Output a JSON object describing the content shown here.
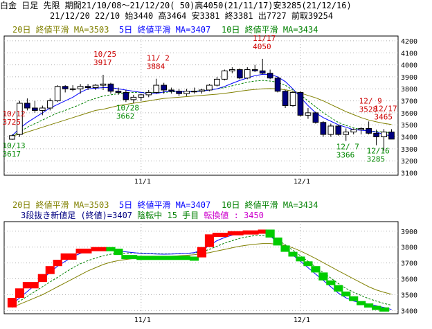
{
  "header": {
    "line1": "白金 日足 先限 期間21/10/08～21/12/20( 50)高4050(21/11/17)安3285(21/12/16)",
    "line2": "21/12/20 22/10 始3440 高3464 安3381 終3381 出7727 前取39254"
  },
  "colors": {
    "ma20": "#808000",
    "ma5": "#0000ff",
    "ma10": "#008000",
    "up": "#ffffff",
    "down": "#000080",
    "rise_brick": "#ff0000",
    "fall_brick": "#00cc00",
    "high_label": "#cc0000",
    "low_label": "#008800",
    "grid": "#b0b0b0",
    "reversal": "#cc00cc"
  },
  "legend_top": {
    "ma20": "20日 終値平滑 MA=3503",
    "ma5": "5日 終値平滑 MA=3407",
    "ma10": "10日 終値平滑 MA=3434"
  },
  "legend_bottom": {
    "ma20": "20日 終値平滑 MA=3503",
    "ma5": "5日 終値平滑 MA=3407",
    "ma10": "10日 終値平滑 MA=3434",
    "info_prefix": "3段抜き新値足 (終値)=3407 ",
    "info_trend": "陰転中 15 手目",
    "info_reversal": " 転換値 : 3450"
  },
  "x_ticks": [
    {
      "label": "11/1",
      "index": 17
    },
    {
      "label": "12/1",
      "index": 38
    }
  ],
  "chart_data": [
    {
      "type": "candlestick",
      "y_ticks": [
        3100,
        3200,
        3300,
        3400,
        3500,
        3600,
        3700,
        3800,
        3900,
        4000,
        4100,
        4200
      ],
      "ylim": [
        3080,
        4240
      ],
      "ohlc": [
        [
          3380,
          3420,
          3375,
          3410
        ],
        [
          3420,
          3700,
          3400,
          3680
        ],
        [
          3680,
          3720,
          3620,
          3640
        ],
        [
          3640,
          3700,
          3600,
          3620
        ],
        [
          3620,
          3660,
          3580,
          3640
        ],
        [
          3640,
          3720,
          3620,
          3700
        ],
        [
          3700,
          3830,
          3690,
          3820
        ],
        [
          3820,
          3830,
          3770,
          3800
        ],
        [
          3800,
          3830,
          3780,
          3800
        ],
        [
          3800,
          3840,
          3760,
          3820
        ],
        [
          3820,
          3840,
          3790,
          3810
        ],
        [
          3810,
          3840,
          3790,
          3830
        ],
        [
          3830,
          3917,
          3790,
          3840
        ],
        [
          3840,
          3850,
          3760,
          3780
        ],
        [
          3780,
          3810,
          3750,
          3770
        ],
        [
          3770,
          3790,
          3690,
          3710
        ],
        [
          3710,
          3750,
          3680,
          3730
        ],
        [
          3730,
          3760,
          3700,
          3750
        ],
        [
          3750,
          3790,
          3730,
          3770
        ],
        [
          3770,
          3884,
          3760,
          3830
        ],
        [
          3830,
          3850,
          3760,
          3790
        ],
        [
          3790,
          3810,
          3760,
          3780
        ],
        [
          3780,
          3800,
          3740,
          3760
        ],
        [
          3760,
          3800,
          3740,
          3780
        ],
        [
          3780,
          3810,
          3760,
          3780
        ],
        [
          3780,
          3800,
          3760,
          3790
        ],
        [
          3790,
          3840,
          3780,
          3830
        ],
        [
          3830,
          3900,
          3820,
          3880
        ],
        [
          3880,
          3960,
          3870,
          3950
        ],
        [
          3950,
          3980,
          3930,
          3960
        ],
        [
          3960,
          3970,
          3880,
          3890
        ],
        [
          3890,
          3980,
          3880,
          3960
        ],
        [
          3960,
          4000,
          3940,
          3950
        ],
        [
          3950,
          4050,
          3920,
          3930
        ],
        [
          3930,
          3960,
          3880,
          3890
        ],
        [
          3890,
          3900,
          3770,
          3780
        ],
        [
          3780,
          3790,
          3640,
          3660
        ],
        [
          3660,
          3780,
          3650,
          3770
        ],
        [
          3770,
          3780,
          3570,
          3580
        ],
        [
          3580,
          3640,
          3550,
          3600
        ],
        [
          3600,
          3610,
          3510,
          3520
        ],
        [
          3520,
          3530,
          3400,
          3420
        ],
        [
          3420,
          3510,
          3400,
          3490
        ],
        [
          3490,
          3500,
          3410,
          3420
        ],
        [
          3420,
          3470,
          3366,
          3440
        ],
        [
          3440,
          3470,
          3420,
          3460
        ],
        [
          3460,
          3480,
          3420,
          3470
        ],
        [
          3470,
          3528,
          3420,
          3430
        ],
        [
          3430,
          3460,
          3330,
          3400
        ],
        [
          3400,
          3465,
          3285,
          3440
        ],
        [
          3440,
          3464,
          3381,
          3381
        ]
      ],
      "ma5": [
        3410,
        3470,
        3520,
        3560,
        3600,
        3640,
        3670,
        3700,
        3730,
        3770,
        3800,
        3805,
        3810,
        3810,
        3800,
        3790,
        3780,
        3770,
        3760,
        3760,
        3775,
        3780,
        3780,
        3775,
        3778,
        3780,
        3790,
        3800,
        3820,
        3845,
        3870,
        3890,
        3910,
        3920,
        3920,
        3900,
        3860,
        3800,
        3730,
        3660,
        3600,
        3560,
        3530,
        3500,
        3480,
        3460,
        3455,
        3450,
        3440,
        3420,
        3407
      ],
      "ma10": [
        3410,
        3440,
        3480,
        3510,
        3540,
        3570,
        3600,
        3620,
        3645,
        3670,
        3700,
        3720,
        3740,
        3750,
        3760,
        3765,
        3770,
        3770,
        3770,
        3770,
        3770,
        3775,
        3777,
        3778,
        3780,
        3784,
        3790,
        3800,
        3810,
        3825,
        3840,
        3855,
        3865,
        3870,
        3865,
        3855,
        3830,
        3790,
        3750,
        3700,
        3650,
        3600,
        3560,
        3520,
        3495,
        3475,
        3460,
        3450,
        3445,
        3440,
        3434
      ],
      "ma20": [
        3410,
        3420,
        3440,
        3460,
        3480,
        3500,
        3520,
        3540,
        3560,
        3580,
        3600,
        3620,
        3630,
        3645,
        3660,
        3670,
        3680,
        3690,
        3700,
        3710,
        3720,
        3725,
        3730,
        3735,
        3740,
        3745,
        3750,
        3755,
        3762,
        3770,
        3780,
        3788,
        3795,
        3800,
        3802,
        3800,
        3792,
        3780,
        3765,
        3745,
        3725,
        3700,
        3670,
        3640,
        3610,
        3585,
        3560,
        3540,
        3525,
        3512,
        3503
      ],
      "high_labels": [
        {
          "index": 0,
          "date": "10/12",
          "value": "3725"
        },
        {
          "index": 12,
          "date": "10/25",
          "value": "3917"
        },
        {
          "index": 19,
          "date": "11/ 2",
          "value": "3884"
        },
        {
          "index": 33,
          "date": "11/17",
          "value": "4050"
        },
        {
          "index": 47,
          "date": "12/ 9",
          "value": "3528"
        },
        {
          "index": 49,
          "date": "12/17",
          "value": "3465"
        }
      ],
      "low_labels": [
        {
          "index": 0,
          "date": "10/13",
          "value": "3617"
        },
        {
          "index": 15,
          "date": "10/28",
          "value": "3662"
        },
        {
          "index": 44,
          "date": "12/ 7",
          "value": "3366"
        },
        {
          "index": 48,
          "date": "12/16",
          "value": "3285"
        }
      ]
    },
    {
      "type": "three_line_break",
      "y_ticks": [
        3400,
        3500,
        3600,
        3700,
        3800,
        3900
      ],
      "ylim": [
        3380,
        3960
      ],
      "bricks": [
        {
          "index": 0,
          "open": 3420,
          "close": 3480,
          "dir": "up"
        },
        {
          "index": 1,
          "open": 3480,
          "close": 3540,
          "dir": "up"
        },
        {
          "index": 2,
          "open": 3540,
          "close": 3580,
          "dir": "up"
        },
        {
          "index": 4,
          "open": 3580,
          "close": 3630,
          "dir": "up"
        },
        {
          "index": 5,
          "open": 3630,
          "close": 3680,
          "dir": "up"
        },
        {
          "index": 6,
          "open": 3680,
          "close": 3720,
          "dir": "up"
        },
        {
          "index": 7,
          "open": 3720,
          "close": 3760,
          "dir": "up"
        },
        {
          "index": 9,
          "open": 3760,
          "close": 3790,
          "dir": "up"
        },
        {
          "index": 11,
          "open": 3790,
          "close": 3800,
          "dir": "up"
        },
        {
          "index": 13,
          "open": 3800,
          "close": 3790,
          "dir": "down"
        },
        {
          "index": 14,
          "open": 3790,
          "close": 3750,
          "dir": "down"
        },
        {
          "index": 15,
          "open": 3750,
          "close": 3745,
          "dir": "down"
        },
        {
          "index": 17,
          "open": 3745,
          "close": 3740,
          "dir": "down"
        },
        {
          "index": 24,
          "open": 3740,
          "close": 3735,
          "dir": "down"
        },
        {
          "index": 25,
          "open": 3735,
          "close": 3800,
          "dir": "up"
        },
        {
          "index": 26,
          "open": 3800,
          "close": 3880,
          "dir": "up"
        },
        {
          "index": 27,
          "open": 3880,
          "close": 3890,
          "dir": "up"
        },
        {
          "index": 29,
          "open": 3890,
          "close": 3900,
          "dir": "up"
        },
        {
          "index": 31,
          "open": 3900,
          "close": 3905,
          "dir": "up"
        },
        {
          "index": 33,
          "open": 3905,
          "close": 3910,
          "dir": "up"
        },
        {
          "index": 34,
          "open": 3910,
          "close": 3860,
          "dir": "down"
        },
        {
          "index": 35,
          "open": 3860,
          "close": 3810,
          "dir": "down"
        },
        {
          "index": 36,
          "open": 3810,
          "close": 3770,
          "dir": "down"
        },
        {
          "index": 37,
          "open": 3770,
          "close": 3740,
          "dir": "down"
        },
        {
          "index": 38,
          "open": 3740,
          "close": 3710,
          "dir": "down"
        },
        {
          "index": 39,
          "open": 3710,
          "close": 3680,
          "dir": "down"
        },
        {
          "index": 40,
          "open": 3680,
          "close": 3640,
          "dir": "down"
        },
        {
          "index": 41,
          "open": 3640,
          "close": 3590,
          "dir": "down"
        },
        {
          "index": 42,
          "open": 3590,
          "close": 3560,
          "dir": "down"
        },
        {
          "index": 43,
          "open": 3560,
          "close": 3520,
          "dir": "down"
        },
        {
          "index": 44,
          "open": 3520,
          "close": 3490,
          "dir": "down"
        },
        {
          "index": 45,
          "open": 3490,
          "close": 3460,
          "dir": "down"
        },
        {
          "index": 46,
          "open": 3460,
          "close": 3445,
          "dir": "down"
        },
        {
          "index": 47,
          "open": 3445,
          "close": 3430,
          "dir": "down"
        },
        {
          "index": 48,
          "open": 3430,
          "close": 3420,
          "dir": "down"
        },
        {
          "index": 49,
          "open": 3420,
          "close": 3400,
          "dir": "down"
        }
      ],
      "ma5": [
        3440,
        3480,
        3520,
        3560,
        3600,
        3640,
        3680,
        3710,
        3740,
        3760,
        3775,
        3785,
        3790,
        3785,
        3775,
        3770,
        3765,
        3760,
        3758,
        3756,
        3755,
        3756,
        3758,
        3760,
        3765,
        3780,
        3810,
        3840,
        3860,
        3875,
        3885,
        3890,
        3895,
        3895,
        3870,
        3830,
        3790,
        3750,
        3710,
        3670,
        3630,
        3590,
        3550,
        3510,
        3480,
        3460,
        3450,
        3440,
        3430,
        3420,
        3407
      ],
      "ma10": [
        3430,
        3460,
        3490,
        3520,
        3550,
        3580,
        3610,
        3640,
        3670,
        3695,
        3715,
        3730,
        3745,
        3755,
        3760,
        3762,
        3763,
        3762,
        3760,
        3758,
        3757,
        3757,
        3758,
        3760,
        3763,
        3770,
        3785,
        3805,
        3825,
        3840,
        3855,
        3865,
        3872,
        3875,
        3865,
        3845,
        3815,
        3780,
        3745,
        3710,
        3675,
        3640,
        3605,
        3570,
        3540,
        3515,
        3495,
        3475,
        3460,
        3445,
        3434
      ],
      "ma20": [
        3420,
        3440,
        3460,
        3480,
        3500,
        3525,
        3550,
        3575,
        3600,
        3625,
        3650,
        3670,
        3690,
        3705,
        3715,
        3722,
        3728,
        3732,
        3735,
        3737,
        3740,
        3742,
        3745,
        3748,
        3752,
        3758,
        3765,
        3775,
        3785,
        3795,
        3805,
        3812,
        3818,
        3822,
        3822,
        3818,
        3810,
        3795,
        3775,
        3752,
        3728,
        3702,
        3676,
        3650,
        3625,
        3600,
        3575,
        3550,
        3530,
        3515,
        3503
      ]
    }
  ]
}
